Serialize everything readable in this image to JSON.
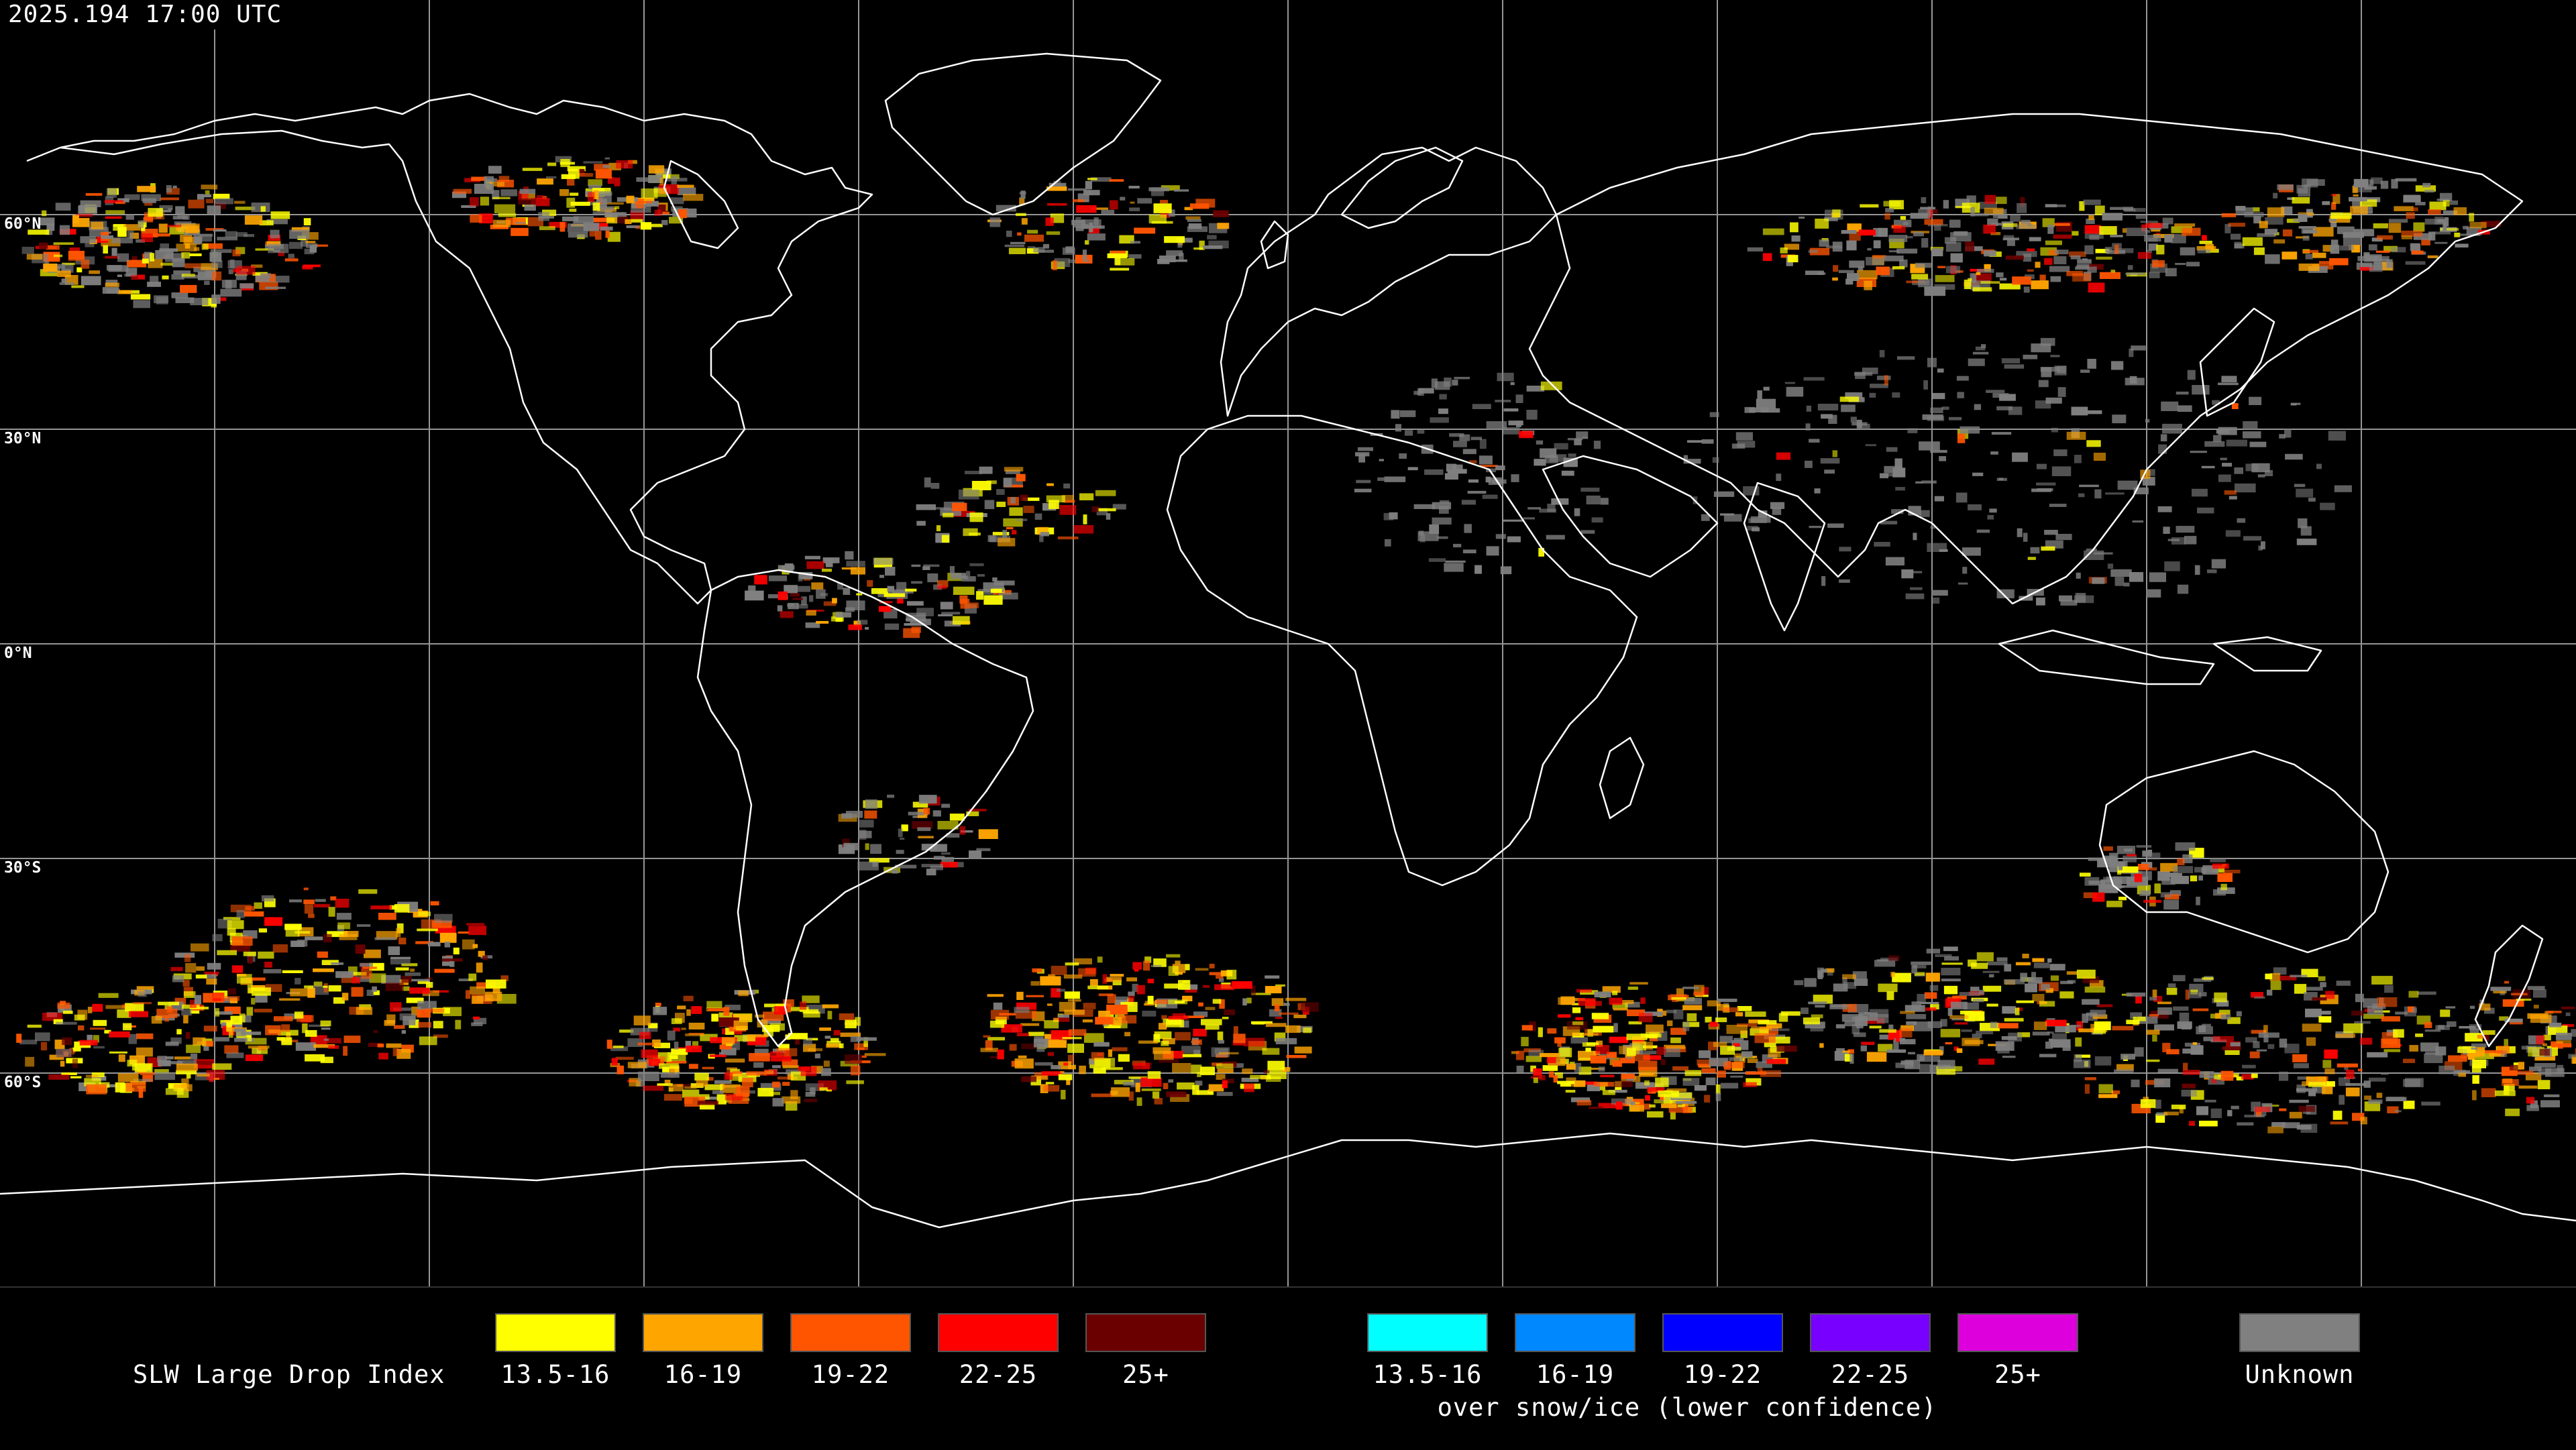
{
  "timestamp": "2025.194 17:00 UTC",
  "latitude_labels": [
    "60°N",
    "30°N",
    "0°N",
    "30°S",
    "60°S"
  ],
  "legend": {
    "title": "SLW Large Drop Index",
    "primary": [
      {
        "label": "13.5-16",
        "color": "#ffff00"
      },
      {
        "label": "16-19",
        "color": "#ffa500"
      },
      {
        "label": "19-22",
        "color": "#ff5500"
      },
      {
        "label": "22-25",
        "color": "#ff0000"
      },
      {
        "label": "25+",
        "color": "#6b0000"
      }
    ],
    "snow_ice": [
      {
        "label": "13.5-16",
        "color": "#00ffff"
      },
      {
        "label": "16-19",
        "color": "#0088ff"
      },
      {
        "label": "19-22",
        "color": "#0000ff"
      },
      {
        "label": "22-25",
        "color": "#7700ff"
      },
      {
        "label": "25+",
        "color": "#dd00dd"
      }
    ],
    "snow_ice_caption": "over snow/ice (lower confidence)",
    "unknown": {
      "label": "Unknown",
      "color": "#808080"
    }
  },
  "colors": {
    "background": "#000000",
    "coastline": "#ffffff",
    "grid": "#bbbbbb"
  }
}
